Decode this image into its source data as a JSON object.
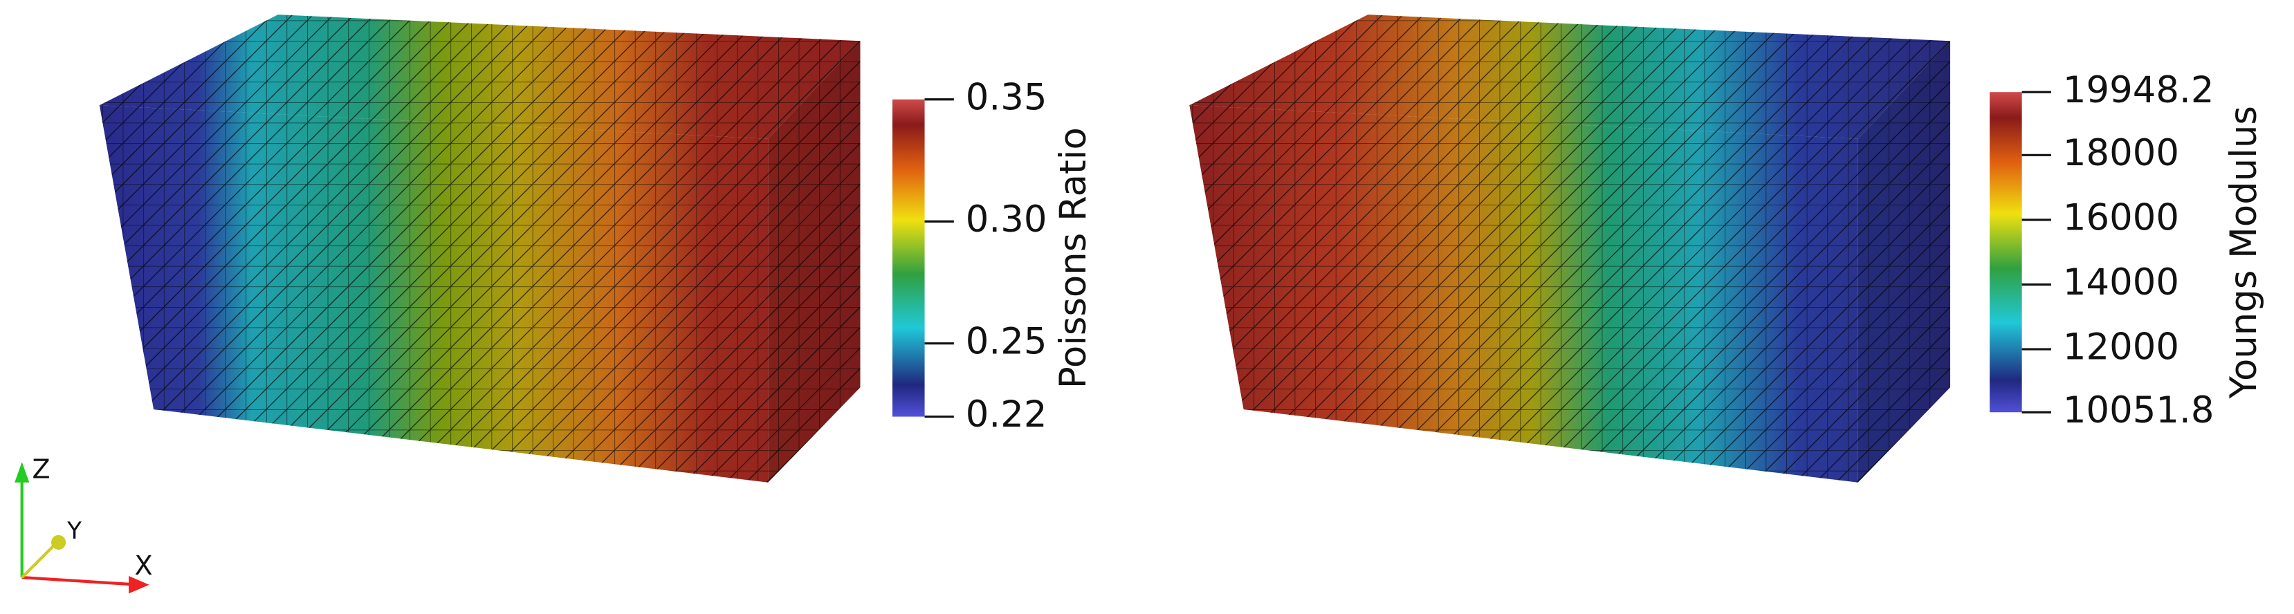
{
  "panels": [
    {
      "colorbar": {
        "title": "Poissons Ratio",
        "range": [
          0.22,
          0.35
        ],
        "ticks": [
          0.35,
          {
            "value": 0.3,
            "label": "0.30"
          },
          0.25,
          0.22
        ]
      }
    },
    {
      "colorbar": {
        "title": "Youngs Modulus",
        "range": [
          10051.8,
          19948.2
        ],
        "ticks": [
          19948.2,
          18000,
          16000,
          14000,
          12000,
          10051.8
        ]
      }
    }
  ],
  "axes": {
    "x": "X",
    "y": "Y",
    "z": "Z"
  }
}
